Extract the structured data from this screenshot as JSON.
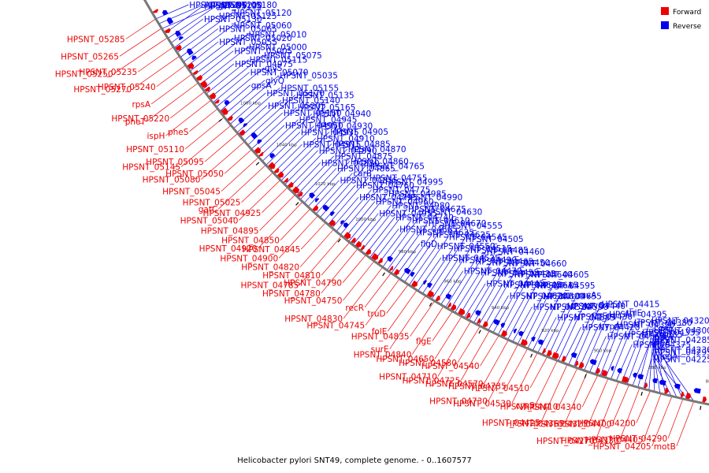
{
  "caption": "Helicobacter pylori SNT49, complete genome. - 0..1607577",
  "colors": {
    "forward": "#ee0000",
    "reverse": "#0000ee",
    "backbone": "#777777"
  },
  "legend": {
    "forward": "Forward",
    "reverse": "Reverse"
  },
  "tick_labels": [
    "1060 kbp",
    "1040 kbp",
    "1020 kbp",
    "1000 kbp",
    "980 kbp",
    "960 kbp",
    "940 kbp",
    "920 kbp",
    "900 kbp",
    "880 kbp",
    "860 kbp"
  ],
  "labels": [
    {
      "t": "HPSNT_05285",
      "s": "f"
    },
    {
      "t": "HPSNT_05265",
      "s": "f"
    },
    {
      "t": "HPSNT_05250",
      "s": "f"
    },
    {
      "t": "HPSNT_05235",
      "s": "f"
    },
    {
      "t": "HPSNT_05270",
      "s": "f"
    },
    {
      "t": "HPSNT_05240",
      "s": "f"
    },
    {
      "t": "rpsA",
      "s": "f"
    },
    {
      "t": "pheT",
      "s": "f"
    },
    {
      "t": "HPSNT_05220",
      "s": "f"
    },
    {
      "t": "ispH",
      "s": "f"
    },
    {
      "t": "pheS",
      "s": "f"
    },
    {
      "t": "HPSNT_05110",
      "s": "f"
    },
    {
      "t": "HPSNT_05145",
      "s": "f"
    },
    {
      "t": "HPSNT_05095",
      "s": "f"
    },
    {
      "t": "HPSNT_05080",
      "s": "f"
    },
    {
      "t": "HPSNT_05050",
      "s": "f"
    },
    {
      "t": "HPSNT_05045",
      "s": "f"
    },
    {
      "t": "gatC",
      "s": "f"
    },
    {
      "t": "HPSNT_05025",
      "s": "f"
    },
    {
      "t": "HPSNT_05040",
      "s": "f"
    },
    {
      "t": "HPSNT_04925",
      "s": "f"
    },
    {
      "t": "HPSNT_04895",
      "s": "f"
    },
    {
      "t": "HPSNT_04920",
      "s": "f"
    },
    {
      "t": "HPSNT_04850",
      "s": "f"
    },
    {
      "t": "HPSNT_04900",
      "s": "f"
    },
    {
      "t": "HPSNT_04845",
      "s": "f"
    },
    {
      "t": "HPSNT_04820",
      "s": "f"
    },
    {
      "t": "HPSNT_04785",
      "s": "f"
    },
    {
      "t": "HPSNT_04810",
      "s": "f"
    },
    {
      "t": "HPSNT_04780",
      "s": "f"
    },
    {
      "t": "HPSNT_04790",
      "s": "f"
    },
    {
      "t": "HPSNT_04750",
      "s": "f"
    },
    {
      "t": "HPSNT_04830",
      "s": "f"
    },
    {
      "t": "recR",
      "s": "f"
    },
    {
      "t": "HPSNT_04745",
      "s": "f"
    },
    {
      "t": "truD",
      "s": "f"
    },
    {
      "t": "folE",
      "s": "f"
    },
    {
      "t": "surE",
      "s": "f"
    },
    {
      "t": "HPSNT_04835",
      "s": "f"
    },
    {
      "t": "HPSNT_04840",
      "s": "f"
    },
    {
      "t": "flgE",
      "s": "f"
    },
    {
      "t": "HPSNT_04650",
      "s": "f"
    },
    {
      "t": "HPSNT_04710",
      "s": "f"
    },
    {
      "t": "HPSNT_04580",
      "s": "f"
    },
    {
      "t": "HPSNT_04725",
      "s": "f"
    },
    {
      "t": "HPSNT_04540",
      "s": "f"
    },
    {
      "t": "HPSNT_04570",
      "s": "f"
    },
    {
      "t": "HPSNT_04730",
      "s": "f"
    },
    {
      "t": "HPSNT_04735",
      "s": "f"
    },
    {
      "t": "HPSNT_04530",
      "s": "f"
    },
    {
      "t": "HPSNT_04510",
      "s": "f"
    },
    {
      "t": "cysS",
      "s": "f"
    },
    {
      "t": "HPSNT_04425",
      "s": "f"
    },
    {
      "t": "HPSNT_04410",
      "s": "f"
    },
    {
      "t": "HPSNT_04365",
      "s": "f"
    },
    {
      "t": "HPSNT_04340",
      "s": "f"
    },
    {
      "t": "HPSNT_04325",
      "s": "f"
    },
    {
      "t": "HPSNT_04270",
      "s": "f"
    },
    {
      "t": "HPSNT_04400",
      "s": "f"
    },
    {
      "t": "HPSNT_04330",
      "s": "f"
    },
    {
      "t": "HPSNT_04200",
      "s": "f"
    },
    {
      "t": "HPSNT_04405",
      "s": "f"
    },
    {
      "t": "HPSNT_04205",
      "s": "f"
    },
    {
      "t": "HPSNT_04290",
      "s": "f"
    },
    {
      "t": "motB",
      "s": "f"
    },
    {
      "t": "HPSNT_05290",
      "s": "r"
    },
    {
      "t": "HPSNT_05200",
      "s": "r"
    },
    {
      "t": "guaA",
      "s": "r"
    },
    {
      "t": "HPSNT_05195",
      "s": "r"
    },
    {
      "t": "HPSNT_05180",
      "s": "r"
    },
    {
      "t": "HPSNT_05130",
      "s": "r"
    },
    {
      "t": "HPSNT_05125",
      "s": "r"
    },
    {
      "t": "HPSNT_05120",
      "s": "r"
    },
    {
      "t": "HPSNT_05065",
      "s": "r"
    },
    {
      "t": "HPSNT_05060",
      "s": "r"
    },
    {
      "t": "HPSNT_05055",
      "s": "r"
    },
    {
      "t": "HPSNT_05020",
      "s": "r"
    },
    {
      "t": "HPSNT_05010",
      "s": "r"
    },
    {
      "t": "HPSNT_05005",
      "s": "r"
    },
    {
      "t": "HPSNT_05000",
      "s": "r"
    },
    {
      "t": "HPSNT_04975",
      "s": "r"
    },
    {
      "t": "HPSNT_05115",
      "s": "r"
    },
    {
      "t": "HPSNT_05075",
      "s": "r"
    },
    {
      "t": "HPSNT_05070",
      "s": "r"
    },
    {
      "t": "glyS",
      "s": "r"
    },
    {
      "t": "gpsA",
      "s": "r"
    },
    {
      "t": "glyQ",
      "s": "r"
    },
    {
      "t": "HPSNT_05035",
      "s": "r"
    },
    {
      "t": "HPSNT_05170",
      "s": "r"
    },
    {
      "t": "HPSNT_05155",
      "s": "r"
    },
    {
      "t": "HPSNT_05205",
      "s": "r"
    },
    {
      "t": "HPSNT_05140",
      "s": "r"
    },
    {
      "t": "HPSNT_05135",
      "s": "r"
    },
    {
      "t": "HPSNT_05150",
      "s": "r"
    },
    {
      "t": "HPSNT_05165",
      "s": "r"
    },
    {
      "t": "HPSNT_04950",
      "s": "r"
    },
    {
      "t": "HPSNT_04945",
      "s": "r"
    },
    {
      "t": "HPSNT_04940",
      "s": "r"
    },
    {
      "t": "HPSNT_04935",
      "s": "r"
    },
    {
      "t": "HPSNT_04930",
      "s": "r"
    },
    {
      "t": "HPSNT_04915",
      "s": "r"
    },
    {
      "t": "HPSNT_04910",
      "s": "r"
    },
    {
      "t": "HPSNT_04905",
      "s": "r"
    },
    {
      "t": "HPSNT_04890",
      "s": "r"
    },
    {
      "t": "HPSNT_04885",
      "s": "r"
    },
    {
      "t": "HPSNT_04880",
      "s": "r"
    },
    {
      "t": "HPSNT_04875",
      "s": "r"
    },
    {
      "t": "HPSNT_04870",
      "s": "r"
    },
    {
      "t": "HPSNT_04865",
      "s": "r"
    },
    {
      "t": "HPSNT_04860",
      "s": "r"
    },
    {
      "t": "HPSNT_04855",
      "s": "r"
    },
    {
      "t": "carB",
      "s": "r"
    },
    {
      "t": "HPSNT_04765",
      "s": "r"
    },
    {
      "t": "HPSNT_04760",
      "s": "r"
    },
    {
      "t": "HPSNT_04755",
      "s": "r"
    },
    {
      "t": "HPSNT_04795",
      "s": "r"
    },
    {
      "t": "HPSNT_04775",
      "s": "r"
    },
    {
      "t": "HPSNT_04995",
      "s": "r"
    },
    {
      "t": "HPSNT_04960",
      "s": "r"
    },
    {
      "t": "HPSNT_04985",
      "s": "r"
    },
    {
      "t": "HPSNT_04955",
      "s": "r"
    },
    {
      "t": "HPSNT_04980",
      "s": "r"
    },
    {
      "t": "HPSNT_04990",
      "s": "r"
    },
    {
      "t": "HPSNT_04740",
      "s": "r"
    },
    {
      "t": "HPSNT_04675",
      "s": "r"
    },
    {
      "t": "HPSNT_04665",
      "s": "r"
    },
    {
      "t": "HPSNT_04610",
      "s": "r"
    },
    {
      "t": "HPSNT_04630",
      "s": "r"
    },
    {
      "t": "HPSNT_04635",
      "s": "r"
    },
    {
      "t": "HPSNT_04670",
      "s": "r"
    },
    {
      "t": "flgD",
      "s": "r"
    },
    {
      "t": "HPSNT_04625",
      "s": "r"
    },
    {
      "t": "HPSNT_04555",
      "s": "r"
    },
    {
      "t": "HPSNT_04550",
      "s": "r"
    },
    {
      "t": "HPSNT_04545",
      "s": "r"
    },
    {
      "t": "HPSNT_04525",
      "s": "r"
    },
    {
      "t": "HPSNT_04515",
      "s": "r"
    },
    {
      "t": "HPSNT_04505",
      "s": "r"
    },
    {
      "t": "HPSNT_04490",
      "s": "r"
    },
    {
      "t": "HPSNT_04485",
      "s": "r"
    },
    {
      "t": "HPSNT_04470",
      "s": "r"
    },
    {
      "t": "HPSNT_04465",
      "s": "r"
    },
    {
      "t": "HPSNT_04460",
      "s": "r"
    },
    {
      "t": "HPSNT_04455",
      "s": "r"
    },
    {
      "t": "HPSNT_04450",
      "s": "r"
    },
    {
      "t": "HPSNT_04445",
      "s": "r"
    },
    {
      "t": "HPSNT_04435",
      "s": "r"
    },
    {
      "t": "HPSNT_04660",
      "s": "r"
    },
    {
      "t": "HPSNT_04645",
      "s": "r"
    },
    {
      "t": "HPSNT_04640",
      "s": "r"
    },
    {
      "t": "HPSNT_04620",
      "s": "r"
    },
    {
      "t": "HPSNT_04615",
      "s": "r"
    },
    {
      "t": "HPSNT_04605",
      "s": "r"
    },
    {
      "t": "HPSNT_04600",
      "s": "r"
    },
    {
      "t": "HPSNT_04595",
      "s": "r"
    },
    {
      "t": "HPSNT_04520",
      "s": "r"
    },
    {
      "t": "HPSNT_04655",
      "s": "r"
    },
    {
      "t": "greA",
      "s": "r"
    },
    {
      "t": "HPSNT_04590",
      "s": "r"
    },
    {
      "t": "dut",
      "s": "r"
    },
    {
      "t": "HPSNT_04585",
      "s": "r"
    },
    {
      "t": "HPSNT_04440",
      "s": "r"
    },
    {
      "t": "ruvA",
      "s": "r"
    },
    {
      "t": "HPSNT_04430",
      "s": "r"
    },
    {
      "t": "ruvC",
      "s": "r"
    },
    {
      "t": "HPSNT_04420",
      "s": "r"
    },
    {
      "t": "flgE",
      "s": "r"
    },
    {
      "t": "HPSNT_04415",
      "s": "r"
    },
    {
      "t": "hypA",
      "s": "r"
    },
    {
      "t": "HPSNT_04395",
      "s": "r"
    },
    {
      "t": "HPSNT_04565",
      "s": "r"
    },
    {
      "t": "HPSNT_04390",
      "s": "r"
    },
    {
      "t": "thiE",
      "s": "r"
    },
    {
      "t": "HPSNT_04385",
      "s": "r"
    },
    {
      "t": "HPSNT_04380",
      "s": "r"
    },
    {
      "t": "HPSNT_04375",
      "s": "r"
    },
    {
      "t": "HPSNT_04335",
      "s": "r"
    },
    {
      "t": "HPSNT_04320",
      "s": "r"
    },
    {
      "t": "speE",
      "s": "r"
    },
    {
      "t": "HPSNT_04300",
      "s": "r"
    },
    {
      "t": "HPSNT_04295",
      "s": "r"
    },
    {
      "t": "HPSNT_04285",
      "s": "r"
    },
    {
      "t": "coaE",
      "s": "r"
    },
    {
      "t": "HPSNT_04230",
      "s": "r"
    },
    {
      "t": "gatA",
      "s": "r"
    },
    {
      "t": "HPSNT_04225",
      "s": "r"
    },
    {
      "t": "fliL",
      "s": "r"
    },
    {
      "t": "acpS",
      "s": "r"
    },
    {
      "t": "mogA",
      "s": "r"
    },
    {
      "t": "ribA",
      "s": "r"
    }
  ]
}
